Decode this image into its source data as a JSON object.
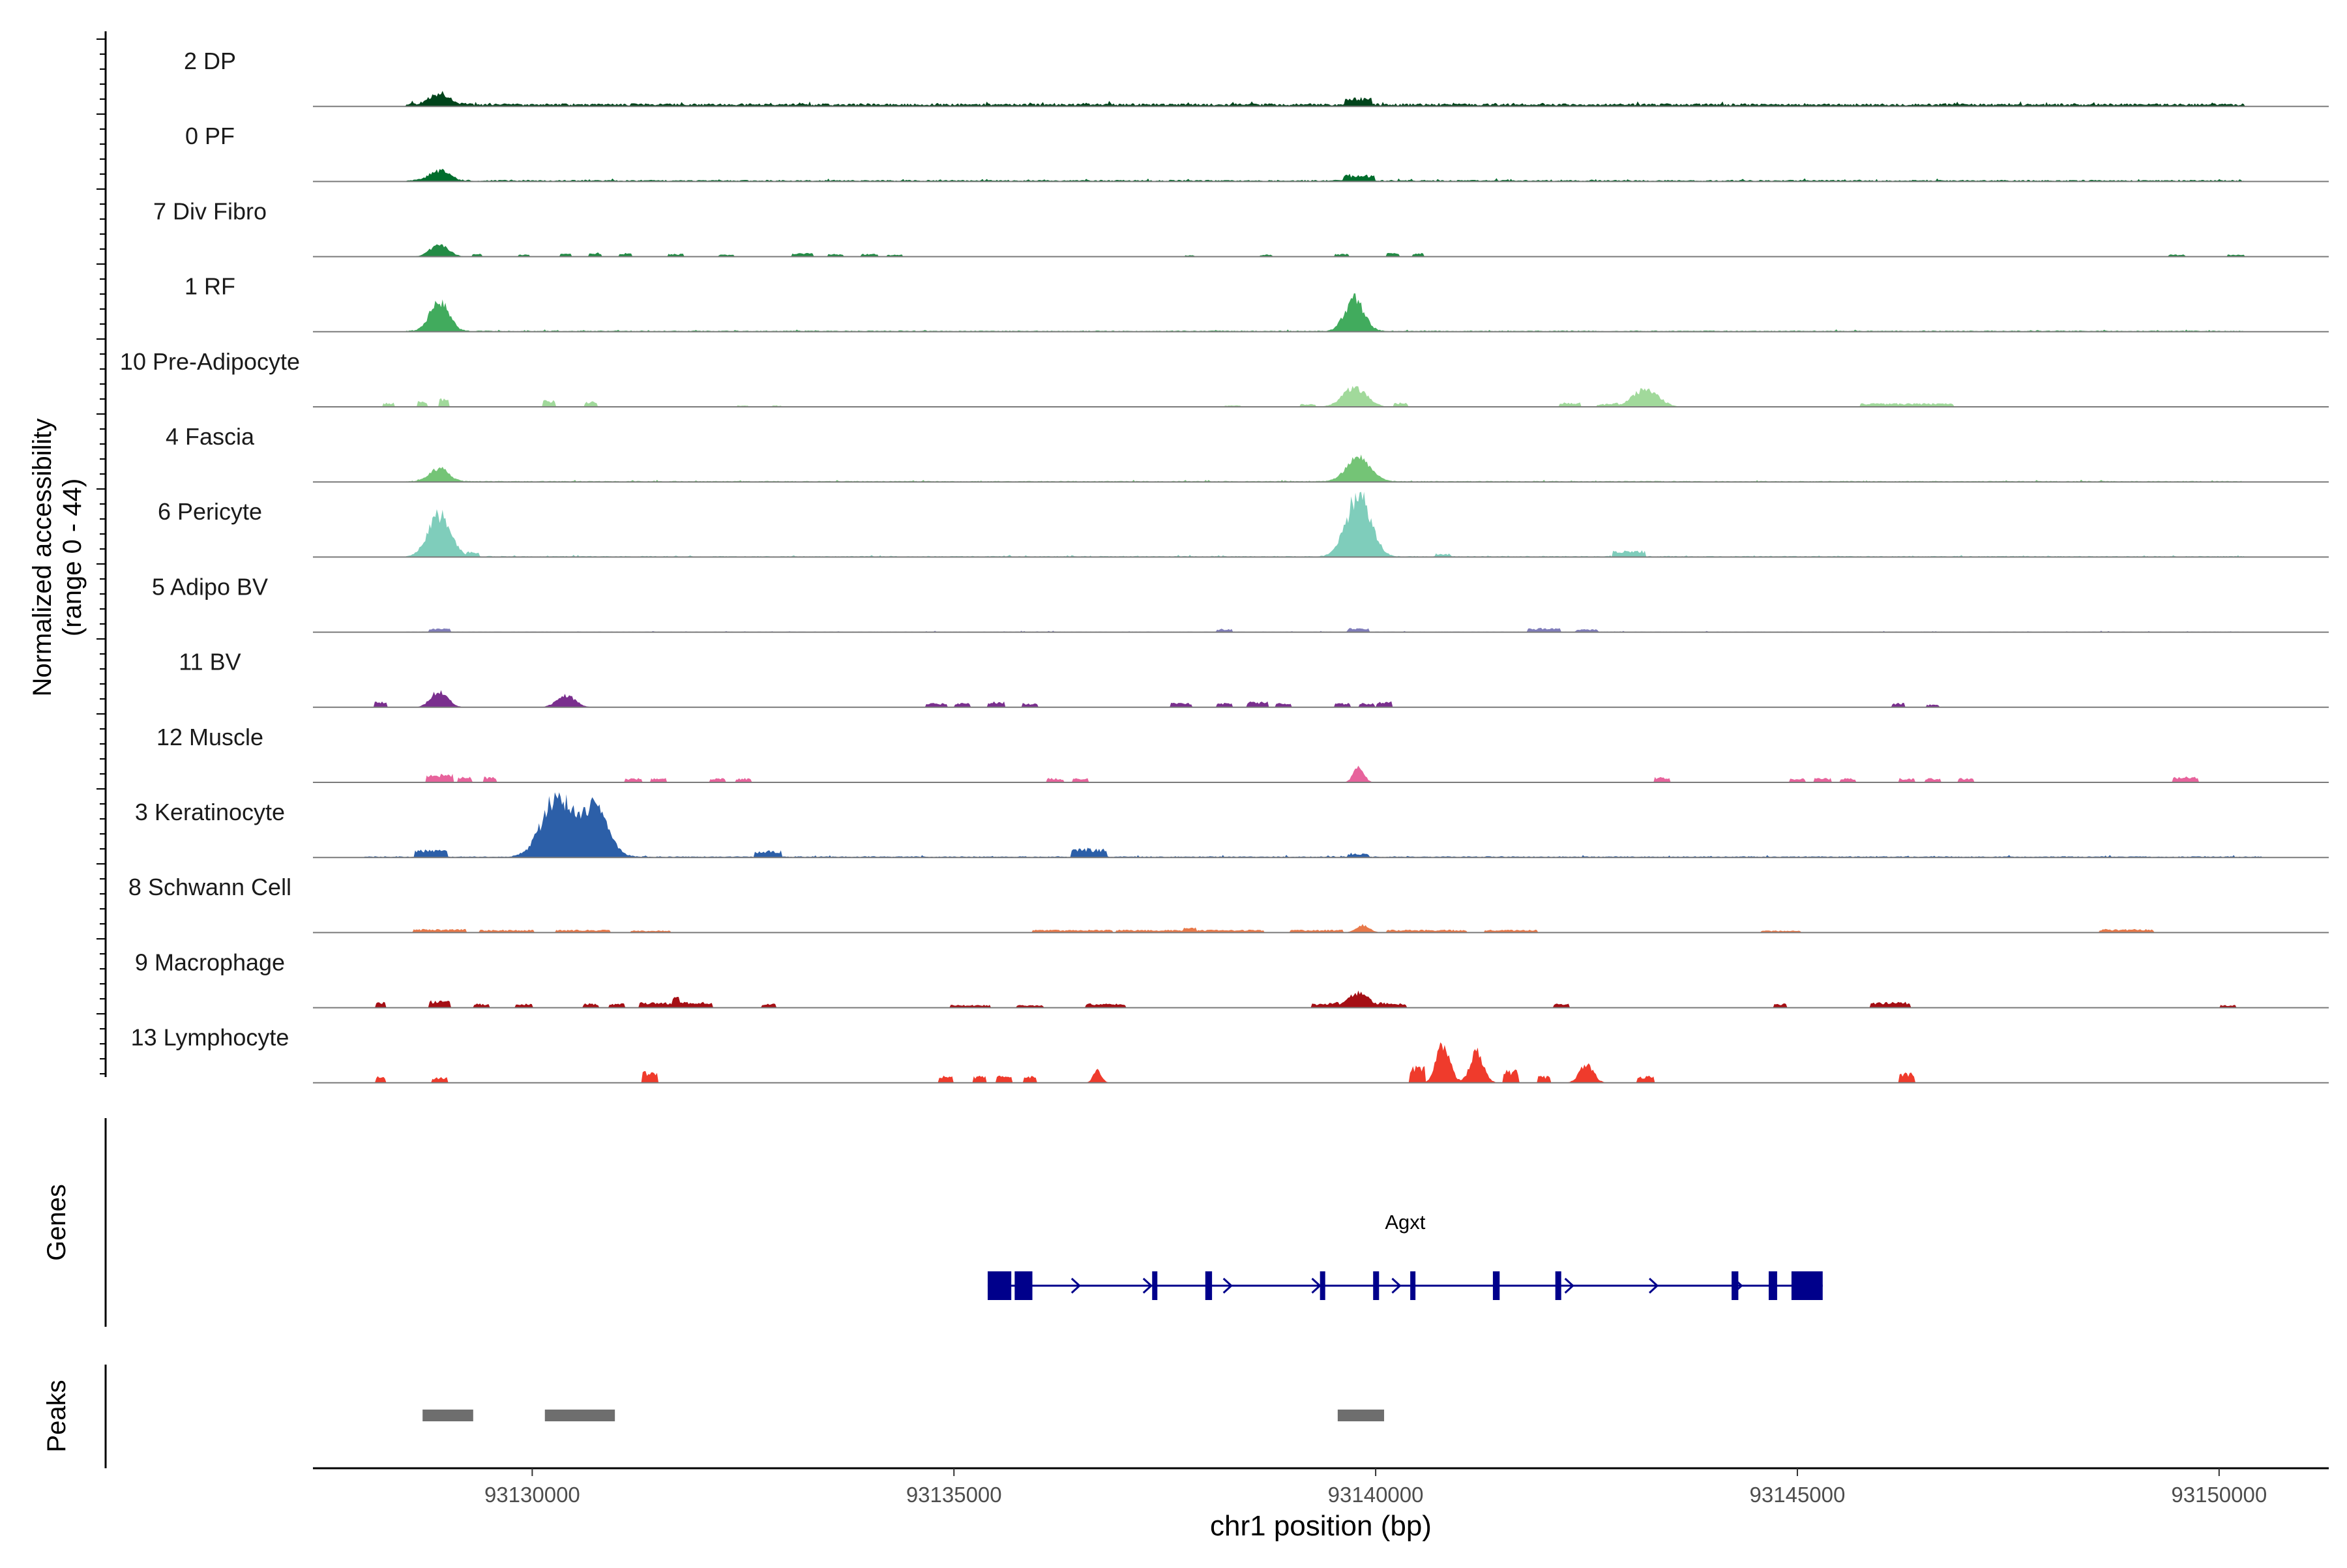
{
  "chart_data": {
    "type": "area",
    "genome": "chr1",
    "region": [
      93127400,
      93151300
    ],
    "y_axis_title": [
      "Normalized accessibility",
      "(range 0 - 44)"
    ],
    "y_range": [
      0,
      44
    ],
    "xlabel": "chr1 position (bp)",
    "x_ticks": [
      93130000,
      93135000,
      93140000,
      93145000,
      93150000
    ],
    "x_tick_labels": [
      "93130000",
      "93135000",
      "93140000",
      "93145000",
      "93150000"
    ],
    "tracks": [
      {
        "name": "2 DP",
        "color": "#00441b",
        "baseline": 1.5,
        "noise": 0.6,
        "span": [
          93128500,
          93150300
        ],
        "peaks": [
          [
            93128900,
            120,
            7
          ]
        ],
        "bumps": [
          [
            93139800,
            100,
            4.5
          ]
        ]
      },
      {
        "name": "0 PF",
        "color": "#006d2c",
        "baseline": 0.8,
        "noise": 0.4,
        "span": [
          93128500,
          93150300
        ],
        "peaks": [
          [
            93128900,
            120,
            6.5
          ]
        ],
        "bumps": [
          [
            93139800,
            120,
            4
          ]
        ]
      },
      {
        "name": "7 Div Fibro",
        "color": "#238b45",
        "baseline": 0,
        "noise": 0,
        "span": [
          93128500,
          93150300
        ],
        "peaks": [
          [
            93128900,
            110,
            8
          ]
        ],
        "bumps": [
          [
            93129350,
            40,
            2
          ],
          [
            93129900,
            40,
            1.5
          ],
          [
            93130400,
            40,
            2
          ],
          [
            93130750,
            50,
            3
          ],
          [
            93131100,
            50,
            2.5
          ],
          [
            93131700,
            60,
            2
          ],
          [
            93132300,
            60,
            1.5
          ],
          [
            93133200,
            80,
            2.5
          ],
          [
            93133600,
            60,
            2
          ],
          [
            93134000,
            60,
            2
          ],
          [
            93134300,
            60,
            1.5
          ],
          [
            93137800,
            40,
            1
          ],
          [
            93138700,
            50,
            1.5
          ],
          [
            93139600,
            50,
            2
          ],
          [
            93140200,
            50,
            2.5
          ],
          [
            93140500,
            40,
            2.5
          ],
          [
            93149500,
            60,
            1.5
          ],
          [
            93150200,
            60,
            1.5
          ]
        ]
      },
      {
        "name": "1 RF",
        "color": "#41ab5d",
        "baseline": 0.6,
        "noise": 0.3,
        "span": [
          93128500,
          93150300
        ],
        "peaks": [
          [
            93128900,
            110,
            20
          ],
          [
            93139750,
            110,
            22
          ]
        ],
        "bumps": []
      },
      {
        "name": "10 Pre-Adipocyte",
        "color": "#a1d99b",
        "baseline": 0,
        "noise": 0,
        "span": [
          93128500,
          93150300
        ],
        "peaks": [
          [
            93139750,
            140,
            13
          ],
          [
            93143200,
            150,
            12
          ]
        ],
        "bumps": [
          [
            93128300,
            40,
            3
          ],
          [
            93128700,
            40,
            4
          ],
          [
            93128950,
            40,
            6
          ],
          [
            93130200,
            50,
            5
          ],
          [
            93130700,
            50,
            4
          ],
          [
            93132500,
            40,
            1
          ],
          [
            93132900,
            40,
            1
          ],
          [
            93138300,
            60,
            1
          ],
          [
            93139200,
            60,
            2
          ],
          [
            93140300,
            50,
            3
          ],
          [
            93142300,
            80,
            3
          ],
          [
            93142750,
            80,
            2
          ],
          [
            93146300,
            350,
            2.5
          ]
        ]
      },
      {
        "name": "4 Fascia",
        "color": "#74c476",
        "baseline": 0.5,
        "noise": 0.3,
        "span": [
          93128500,
          93150300
        ],
        "peaks": [
          [
            93128900,
            110,
            9
          ],
          [
            93139800,
            140,
            16
          ]
        ],
        "bumps": []
      },
      {
        "name": "6 Pericyte",
        "color": "#7fcdbb",
        "baseline": 0.5,
        "noise": 0.3,
        "span": [
          93128500,
          93150300
        ],
        "peaks": [
          [
            93128900,
            130,
            28
          ],
          [
            93139800,
            140,
            42
          ]
        ],
        "bumps": [
          [
            93129300,
            50,
            3
          ],
          [
            93143000,
            120,
            4
          ],
          [
            93140800,
            60,
            2
          ]
        ]
      },
      {
        "name": "5 Adipo BV",
        "color": "#807dba",
        "baseline": 0.3,
        "noise": 0.2,
        "span": [
          93128500,
          93150300
        ],
        "peaks": [],
        "bumps": [
          [
            93128900,
            80,
            2.5
          ],
          [
            93139800,
            80,
            2.5
          ],
          [
            93142000,
            120,
            2.5
          ],
          [
            93142500,
            80,
            2
          ],
          [
            93138200,
            60,
            2
          ]
        ]
      },
      {
        "name": "11 BV",
        "color": "#7a2f8e",
        "baseline": 0,
        "noise": 0,
        "span": [
          93128500,
          93150300
        ],
        "peaks": [
          [
            93128900,
            100,
            11
          ],
          [
            93130400,
            110,
            8
          ]
        ],
        "bumps": [
          [
            93128200,
            50,
            4
          ],
          [
            93134800,
            80,
            3
          ],
          [
            93135100,
            60,
            3
          ],
          [
            93135500,
            60,
            4
          ],
          [
            93135900,
            60,
            3
          ],
          [
            93137700,
            80,
            3
          ],
          [
            93138200,
            60,
            3
          ],
          [
            93138600,
            80,
            4
          ],
          [
            93138900,
            60,
            3
          ],
          [
            93139600,
            60,
            3
          ],
          [
            93139900,
            60,
            3
          ],
          [
            93140100,
            60,
            4
          ],
          [
            93146200,
            50,
            3
          ],
          [
            93146600,
            50,
            2
          ]
        ]
      },
      {
        "name": "12 Muscle",
        "color": "#e7639c",
        "baseline": 0,
        "noise": 0,
        "span": [
          93128500,
          93150300
        ],
        "peaks": [
          [
            93139800,
            60,
            11
          ]
        ],
        "bumps": [
          [
            93128900,
            100,
            6
          ],
          [
            93129200,
            50,
            4
          ],
          [
            93129500,
            50,
            4
          ],
          [
            93131200,
            60,
            3
          ],
          [
            93131500,
            60,
            3
          ],
          [
            93132200,
            60,
            3
          ],
          [
            93132500,
            60,
            3
          ],
          [
            93136200,
            60,
            3
          ],
          [
            93136500,
            60,
            3
          ],
          [
            93143400,
            60,
            4
          ],
          [
            93145000,
            60,
            3
          ],
          [
            93145300,
            60,
            3
          ],
          [
            93145600,
            60,
            3
          ],
          [
            93146300,
            60,
            3
          ],
          [
            93146600,
            60,
            3
          ],
          [
            93147000,
            60,
            3
          ],
          [
            93149600,
            100,
            4
          ]
        ]
      },
      {
        "name": "3 Keratinocyte",
        "color": "#2c5fa8",
        "baseline": 0.6,
        "noise": 0.4,
        "span": [
          93128000,
          93150500
        ],
        "peaks": [
          [
            93130300,
            180,
            40
          ],
          [
            93130750,
            150,
            33
          ]
        ],
        "bumps": [
          [
            93128800,
            120,
            5
          ],
          [
            93132800,
            100,
            4
          ],
          [
            93136600,
            130,
            6
          ],
          [
            93139800,
            80,
            2
          ]
        ]
      },
      {
        "name": "8 Schwann Cell",
        "color": "#e8794a",
        "baseline": 0,
        "noise": 0,
        "span": [
          93128500,
          93150300
        ],
        "peaks": [
          [
            93139850,
            80,
            5
          ]
        ],
        "bumps": [
          [
            93128900,
            200,
            2.5
          ],
          [
            93129700,
            200,
            2
          ],
          [
            93130600,
            200,
            2
          ],
          [
            93131400,
            150,
            1.5
          ],
          [
            93136400,
            300,
            2
          ],
          [
            93137400,
            300,
            2
          ],
          [
            93138200,
            300,
            2
          ],
          [
            93139300,
            200,
            2
          ],
          [
            93140600,
            300,
            2
          ],
          [
            93141600,
            200,
            2
          ],
          [
            93144800,
            150,
            1.5
          ],
          [
            93148900,
            200,
            2.5
          ]
        ]
      },
      {
        "name": "9 Macrophage",
        "color": "#a50f15",
        "baseline": 0,
        "noise": 0,
        "span": [
          93128500,
          93150300
        ],
        "peaks": [
          [
            93139800,
            130,
            10
          ]
        ],
        "bumps": [
          [
            93128200,
            40,
            4
          ],
          [
            93128900,
            80,
            5
          ],
          [
            93129400,
            60,
            3
          ],
          [
            93129900,
            60,
            3
          ],
          [
            93130700,
            60,
            3
          ],
          [
            93131000,
            60,
            3
          ],
          [
            93131500,
            150,
            4
          ],
          [
            93131900,
            150,
            4
          ],
          [
            93132800,
            50,
            3
          ],
          [
            93135200,
            150,
            2
          ],
          [
            93135900,
            100,
            2
          ],
          [
            93136800,
            150,
            3
          ],
          [
            93139400,
            100,
            3
          ],
          [
            93140200,
            100,
            3
          ],
          [
            93142200,
            60,
            3
          ],
          [
            93144800,
            50,
            3
          ],
          [
            93146100,
            150,
            4
          ],
          [
            93150100,
            60,
            2
          ]
        ]
      },
      {
        "name": "13 Lymphocyte",
        "color": "#ef3b2c",
        "baseline": 0,
        "noise": 0,
        "span": [
          93128500,
          93150300
        ],
        "peaks": [
          [
            93140800,
            80,
            26
          ],
          [
            93141200,
            80,
            20
          ],
          [
            93142500,
            80,
            13
          ],
          [
            93136700,
            50,
            8
          ]
        ],
        "bumps": [
          [
            93128200,
            40,
            5
          ],
          [
            93128900,
            60,
            4
          ],
          [
            93131400,
            60,
            8
          ],
          [
            93134900,
            50,
            5
          ],
          [
            93135300,
            50,
            5
          ],
          [
            93135600,
            60,
            5
          ],
          [
            93135900,
            50,
            5
          ],
          [
            93140500,
            60,
            12
          ],
          [
            93141600,
            60,
            9
          ],
          [
            93142000,
            50,
            5
          ],
          [
            93143200,
            60,
            5
          ],
          [
            93146300,
            60,
            7
          ]
        ]
      }
    ],
    "genes": {
      "title": "Genes",
      "name": "Agxt",
      "color": "#00008b",
      "start": 93135400,
      "end": 93145300,
      "exons": [
        [
          93135400,
          93135680,
          "wide"
        ],
        [
          93135720,
          93135930,
          "wide"
        ],
        [
          93137350,
          93137410,
          "thin"
        ],
        [
          93137980,
          93138060,
          "thin"
        ],
        [
          93139340,
          93139400,
          "thin"
        ],
        [
          93139970,
          93140040,
          "thin"
        ],
        [
          93140410,
          93140470,
          "thin"
        ],
        [
          93141390,
          93141470,
          "thin"
        ],
        [
          93142130,
          93142200,
          "thin"
        ],
        [
          93144220,
          93144300,
          "thin"
        ],
        [
          93144660,
          93144760,
          "thin"
        ],
        [
          93144930,
          93145300,
          "wide"
        ]
      ],
      "arrows": [
        93135500,
        93136450,
        93137300,
        93138250,
        93139300,
        93140250,
        93142300,
        93143300,
        93144300
      ]
    },
    "peaks_track": {
      "title": "Peaks",
      "color": "#6e6e6e",
      "intervals": [
        [
          93128700,
          93129300
        ],
        [
          93130150,
          93130980
        ],
        [
          93139550,
          93140100
        ]
      ]
    }
  }
}
